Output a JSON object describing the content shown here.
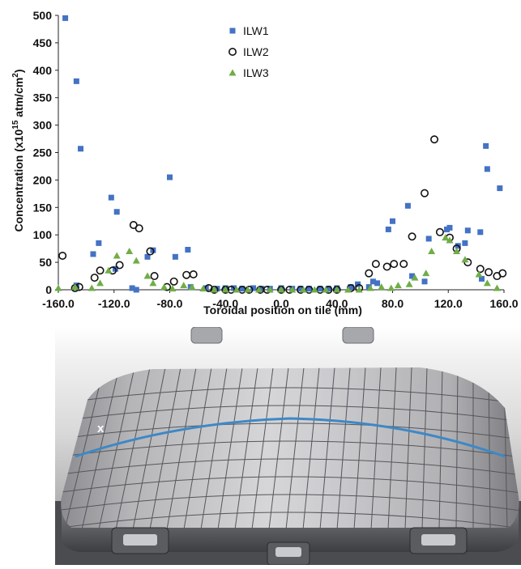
{
  "chart_data": {
    "type": "scatter",
    "title": "",
    "xlabel": "Toroidal position on tile (mm)",
    "ylabel_main": "Concentration (x10",
    "ylabel_sup1": "15",
    "ylabel_mid": " atm/cm",
    "ylabel_sup2": "2",
    "ylabel_end": ")",
    "xlim": [
      -160,
      160
    ],
    "ylim": [
      0,
      500
    ],
    "xticks": [
      "-160.0",
      "-120.0",
      "-80.0",
      "-40.0",
      "0.0",
      "40.0",
      "80.0",
      "120.0",
      "160.0"
    ],
    "xtick_values": [
      -160,
      -120,
      -80,
      -40,
      0,
      40,
      80,
      120,
      160
    ],
    "yticks": [
      "0",
      "50",
      "100",
      "150",
      "200",
      "250",
      "300",
      "350",
      "400",
      "450",
      "500"
    ],
    "ytick_values": [
      0,
      50,
      100,
      150,
      200,
      250,
      300,
      350,
      400,
      450,
      500
    ],
    "grid": false,
    "legend_position": "top-center",
    "series": [
      {
        "name": "ILW1",
        "marker": "square",
        "color": "#4472C4",
        "points": [
          [
            -155,
            495
          ],
          [
            -147,
            380
          ],
          [
            -144,
            257
          ],
          [
            -147,
            8
          ],
          [
            -135,
            65
          ],
          [
            -131,
            85
          ],
          [
            -122,
            168
          ],
          [
            -118,
            142
          ],
          [
            -119,
            38
          ],
          [
            -107,
            3
          ],
          [
            -104,
            0
          ],
          [
            -92,
            72
          ],
          [
            -96,
            60
          ],
          [
            -80,
            205
          ],
          [
            -76,
            60
          ],
          [
            -67,
            73
          ],
          [
            -65,
            5
          ],
          [
            -54,
            3
          ],
          [
            -46,
            2
          ],
          [
            -40,
            3
          ],
          [
            -34,
            3
          ],
          [
            -28,
            2
          ],
          [
            -20,
            3
          ],
          [
            -14,
            2
          ],
          [
            -8,
            2
          ],
          [
            0,
            3
          ],
          [
            8,
            2
          ],
          [
            14,
            2
          ],
          [
            20,
            2
          ],
          [
            28,
            2
          ],
          [
            34,
            2
          ],
          [
            40,
            3
          ],
          [
            50,
            5
          ],
          [
            55,
            10
          ],
          [
            63,
            5
          ],
          [
            66,
            15
          ],
          [
            69,
            12
          ],
          [
            77,
            110
          ],
          [
            80,
            125
          ],
          [
            91,
            153
          ],
          [
            94,
            25
          ],
          [
            103,
            15
          ],
          [
            106,
            93
          ],
          [
            119,
            110
          ],
          [
            121,
            113
          ],
          [
            127,
            80
          ],
          [
            132,
            85
          ],
          [
            134,
            108
          ],
          [
            143,
            105
          ],
          [
            144,
            20
          ],
          [
            147,
            262
          ],
          [
            148,
            220
          ],
          [
            157,
            185
          ]
        ]
      },
      {
        "name": "ILW2",
        "marker": "circle",
        "color": "#111111",
        "points": [
          [
            -157,
            62
          ],
          [
            -148,
            3
          ],
          [
            -145,
            5
          ],
          [
            -134,
            22
          ],
          [
            -130,
            35
          ],
          [
            -121,
            35
          ],
          [
            -116,
            45
          ],
          [
            -106,
            118
          ],
          [
            -102,
            112
          ],
          [
            -94,
            70
          ],
          [
            -91,
            25
          ],
          [
            -82,
            5
          ],
          [
            -77,
            15
          ],
          [
            -68,
            27
          ],
          [
            -63,
            28
          ],
          [
            -52,
            3
          ],
          [
            -48,
            0
          ],
          [
            -40,
            0
          ],
          [
            -36,
            0
          ],
          [
            -28,
            0
          ],
          [
            -23,
            0
          ],
          [
            -15,
            0
          ],
          [
            -10,
            0
          ],
          [
            0,
            0
          ],
          [
            6,
            0
          ],
          [
            14,
            0
          ],
          [
            20,
            0
          ],
          [
            28,
            0
          ],
          [
            34,
            0
          ],
          [
            40,
            0
          ],
          [
            50,
            3
          ],
          [
            56,
            3
          ],
          [
            63,
            30
          ],
          [
            68,
            47
          ],
          [
            76,
            42
          ],
          [
            81,
            47
          ],
          [
            88,
            47
          ],
          [
            94,
            97
          ],
          [
            103,
            176
          ],
          [
            110,
            274
          ],
          [
            114,
            105
          ],
          [
            121,
            95
          ],
          [
            126,
            75
          ],
          [
            134,
            50
          ],
          [
            143,
            38
          ],
          [
            149,
            32
          ],
          [
            155,
            25
          ],
          [
            159,
            30
          ]
        ]
      },
      {
        "name": "ILW3",
        "marker": "triangle",
        "color": "#70AD47",
        "points": [
          [
            -160,
            3
          ],
          [
            -148,
            5
          ],
          [
            -136,
            3
          ],
          [
            -130,
            12
          ],
          [
            -124,
            35
          ],
          [
            -118,
            62
          ],
          [
            -109,
            70
          ],
          [
            -104,
            53
          ],
          [
            -96,
            25
          ],
          [
            -92,
            12
          ],
          [
            -84,
            5
          ],
          [
            -78,
            2
          ],
          [
            -70,
            8
          ],
          [
            -64,
            5
          ],
          [
            -56,
            2
          ],
          [
            -48,
            0
          ],
          [
            -40,
            0
          ],
          [
            -32,
            0
          ],
          [
            -24,
            0
          ],
          [
            -16,
            0
          ],
          [
            -8,
            0
          ],
          [
            0,
            0
          ],
          [
            8,
            0
          ],
          [
            16,
            0
          ],
          [
            24,
            0
          ],
          [
            32,
            0
          ],
          [
            40,
            0
          ],
          [
            48,
            0
          ],
          [
            56,
            0
          ],
          [
            64,
            3
          ],
          [
            72,
            5
          ],
          [
            79,
            3
          ],
          [
            84,
            8
          ],
          [
            92,
            10
          ],
          [
            96,
            22
          ],
          [
            104,
            30
          ],
          [
            108,
            70
          ],
          [
            118,
            95
          ],
          [
            121,
            90
          ],
          [
            126,
            70
          ],
          [
            132,
            55
          ],
          [
            142,
            28
          ],
          [
            148,
            12
          ],
          [
            155,
            3
          ]
        ]
      }
    ]
  },
  "photo": {
    "marker_label": "x",
    "colors": {
      "stripe": "#3f88c5",
      "tile_light": "#c9c9cb",
      "tile_dark": "#6f6f73",
      "background": "#3a3d42"
    }
  }
}
